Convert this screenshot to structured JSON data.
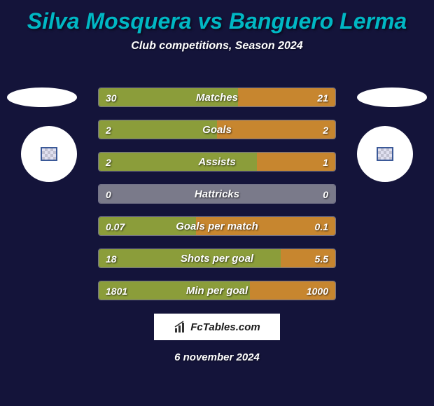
{
  "title": "Silva Mosquera vs Banguero Lerma",
  "subtitle": "Club competitions, Season 2024",
  "date": "6 november 2024",
  "watermark": "FcTables.com",
  "colors": {
    "background": "#14143a",
    "title_color": "#00b8c4",
    "text_color": "#ffffff",
    "bar_left": "#8b9d3a",
    "bar_right": "#c7862f",
    "bar_neutral": "#7a7a8a"
  },
  "stats": [
    {
      "label": "Matches",
      "left_val": "30",
      "right_val": "21",
      "left_pct": 59,
      "right_pct": 41
    },
    {
      "label": "Goals",
      "left_val": "2",
      "right_val": "2",
      "left_pct": 50,
      "right_pct": 50
    },
    {
      "label": "Assists",
      "left_val": "2",
      "right_val": "1",
      "left_pct": 67,
      "right_pct": 33
    },
    {
      "label": "Hattricks",
      "left_val": "0",
      "right_val": "0",
      "left_pct": 0,
      "right_pct": 0
    },
    {
      "label": "Goals per match",
      "left_val": "0.07",
      "right_val": "0.1",
      "left_pct": 41,
      "right_pct": 59
    },
    {
      "label": "Shots per goal",
      "left_val": "18",
      "right_val": "5.5",
      "left_pct": 77,
      "right_pct": 23
    },
    {
      "label": "Min per goal",
      "left_val": "1801",
      "right_val": "1000",
      "left_pct": 64,
      "right_pct": 36
    }
  ]
}
